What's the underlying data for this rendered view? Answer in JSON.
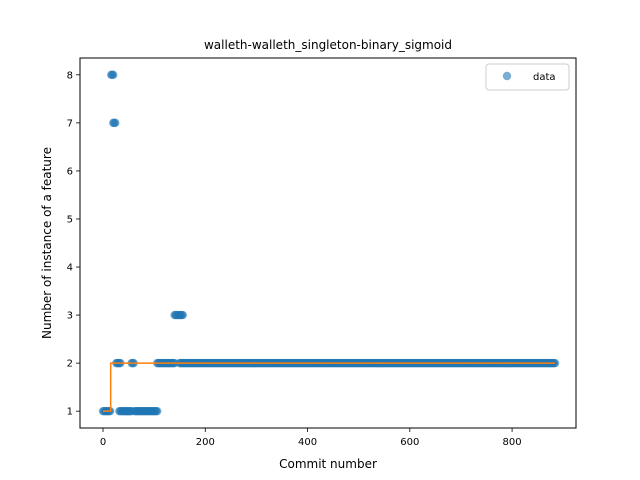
{
  "chart_data": {
    "type": "scatter",
    "title": "walleth-walleth_singleton-binary_sigmoid",
    "xlabel": "Commit number",
    "ylabel": "Number of instance of a feature",
    "xlim": [
      -45,
      925
    ],
    "ylim": [
      0.65,
      8.35
    ],
    "xticks": [
      0,
      200,
      400,
      600,
      800
    ],
    "yticks": [
      1,
      2,
      3,
      4,
      5,
      6,
      7,
      8
    ],
    "grid": false,
    "legend": {
      "position": "top-right",
      "entries": [
        "data"
      ]
    },
    "colors": {
      "points": "#1f77b4",
      "fit": "#ff7f0e"
    },
    "series": [
      {
        "name": "data",
        "kind": "scatter",
        "segments": [
          {
            "x_start": 0,
            "x_end": 14,
            "step": 2,
            "y": 1
          },
          {
            "x_start": 16,
            "x_end": 20,
            "step": 2,
            "y": 8
          },
          {
            "x_start": 20,
            "x_end": 24,
            "step": 2,
            "y": 7
          },
          {
            "x_start": 26,
            "x_end": 34,
            "step": 2,
            "y": 2
          },
          {
            "x_start": 32,
            "x_end": 56,
            "step": 2,
            "y": 1
          },
          {
            "x_start": 56,
            "x_end": 60,
            "step": 2,
            "y": 2
          },
          {
            "x_start": 62,
            "x_end": 106,
            "step": 2,
            "y": 1
          },
          {
            "x_start": 106,
            "x_end": 140,
            "step": 2,
            "y": 2
          },
          {
            "x_start": 140,
            "x_end": 156,
            "step": 2,
            "y": 3
          },
          {
            "x_start": 150,
            "x_end": 884,
            "step": 2,
            "y": 2
          }
        ]
      },
      {
        "name": "",
        "kind": "line",
        "x": [
          0,
          15,
          15,
          884
        ],
        "y": [
          1,
          1,
          2,
          2
        ]
      }
    ]
  }
}
